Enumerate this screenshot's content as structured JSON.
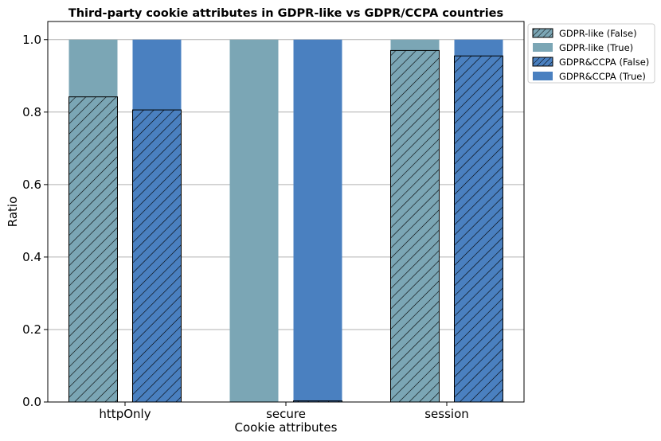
{
  "chart_data": {
    "type": "bar",
    "stacked": true,
    "title": "Third-party cookie attributes in GDPR-like vs GDPR/CCPA countries",
    "xlabel": "Cookie attributes",
    "ylabel": "Ratio",
    "ylim": [
      0,
      1.05
    ],
    "yticks": [
      "0.0",
      "0.2",
      "0.4",
      "0.6",
      "0.8",
      "1.0"
    ],
    "grid": "horizontal",
    "legend_position": "top-right, outside plot",
    "categories": [
      "httpOnly",
      "secure",
      "session"
    ],
    "groups": [
      {
        "name": "GDPR-like",
        "color": "#7BA6B5",
        "false_values": [
          0.842,
          0.0,
          0.97
        ],
        "true_values": [
          0.158,
          1.0,
          0.03
        ]
      },
      {
        "name": "GDPR&CCPA",
        "color": "#4A80C0",
        "false_values": [
          0.806,
          0.003,
          0.955
        ],
        "true_values": [
          0.194,
          0.997,
          0.045
        ]
      }
    ],
    "legend": [
      {
        "label": "GDPR-like (False)",
        "color": "#7BA6B5",
        "hatched": true
      },
      {
        "label": "GDPR-like (True)",
        "color": "#7BA6B5",
        "hatched": false
      },
      {
        "label": "GDPR&CCPA (False)",
        "color": "#4A80C0",
        "hatched": true
      },
      {
        "label": "GDPR&CCPA (True)",
        "color": "#4A80C0",
        "hatched": false
      }
    ]
  }
}
